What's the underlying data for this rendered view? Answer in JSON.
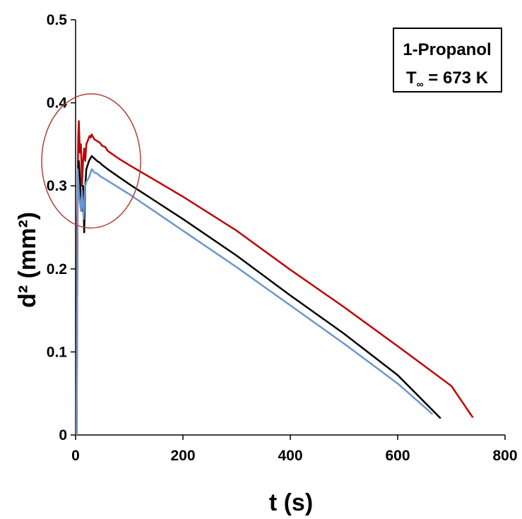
{
  "chart_data": {
    "type": "line",
    "xlabel": "t (s)",
    "ylabel": "d² (mm²)",
    "xlim": [
      0,
      800
    ],
    "ylim": [
      0,
      0.5
    ],
    "x_ticks": [
      0,
      200,
      400,
      600,
      800
    ],
    "y_ticks": [
      0,
      0.1,
      0.2,
      0.3,
      0.4,
      0.5
    ],
    "y_tick_labels": [
      "0",
      "0.1",
      "0.2",
      "0.3",
      "0.4",
      "0.5"
    ],
    "grid": false,
    "annotation": {
      "line1": "1-Propanol",
      "line2_prefix": "T",
      "line2_sub": "∞",
      "line2_suffix": " = 673 K"
    },
    "highlight_circle": {
      "center": [
        29,
        0.33
      ],
      "color": "#b0403a"
    },
    "series": [
      {
        "color": "#c00000",
        "x": [
          1,
          3,
          5,
          6,
          8,
          10,
          12,
          14,
          16,
          18,
          20,
          23,
          26,
          28,
          30,
          35,
          40,
          45,
          50,
          55,
          60,
          80,
          100,
          150,
          200,
          300,
          400,
          500,
          600,
          700,
          740
        ],
        "y": [
          0.0,
          0.26,
          0.36,
          0.378,
          0.34,
          0.35,
          0.3,
          0.33,
          0.345,
          0.33,
          0.35,
          0.355,
          0.36,
          0.358,
          0.362,
          0.356,
          0.354,
          0.352,
          0.348,
          0.347,
          0.342,
          0.333,
          0.325,
          0.306,
          0.287,
          0.246,
          0.199,
          0.154,
          0.107,
          0.059,
          0.021
        ]
      },
      {
        "color": "#000000",
        "x": [
          2,
          4,
          6,
          8,
          10,
          12,
          14,
          16,
          18,
          20,
          25,
          30,
          35,
          40,
          45,
          50,
          60,
          80,
          100,
          150,
          200,
          300,
          400,
          500,
          600,
          680
        ],
        "y": [
          0.0,
          0.3,
          0.33,
          0.31,
          0.28,
          0.27,
          0.3,
          0.244,
          0.3,
          0.32,
          0.33,
          0.336,
          0.333,
          0.33,
          0.328,
          0.325,
          0.32,
          0.311,
          0.302,
          0.281,
          0.26,
          0.216,
          0.168,
          0.122,
          0.072,
          0.02
        ]
      },
      {
        "color": "#6a96cf",
        "x": [
          2,
          4,
          6,
          8,
          10,
          12,
          15,
          18,
          20,
          25,
          30,
          35,
          40,
          45,
          50,
          60,
          80,
          100,
          150,
          200,
          300,
          400,
          500,
          600,
          665
        ],
        "y": [
          0.0,
          0.32,
          0.29,
          0.28,
          0.27,
          0.295,
          0.26,
          0.3,
          0.305,
          0.31,
          0.32,
          0.316,
          0.315,
          0.312,
          0.31,
          0.306,
          0.298,
          0.29,
          0.268,
          0.246,
          0.202,
          0.156,
          0.11,
          0.062,
          0.025
        ]
      }
    ]
  }
}
